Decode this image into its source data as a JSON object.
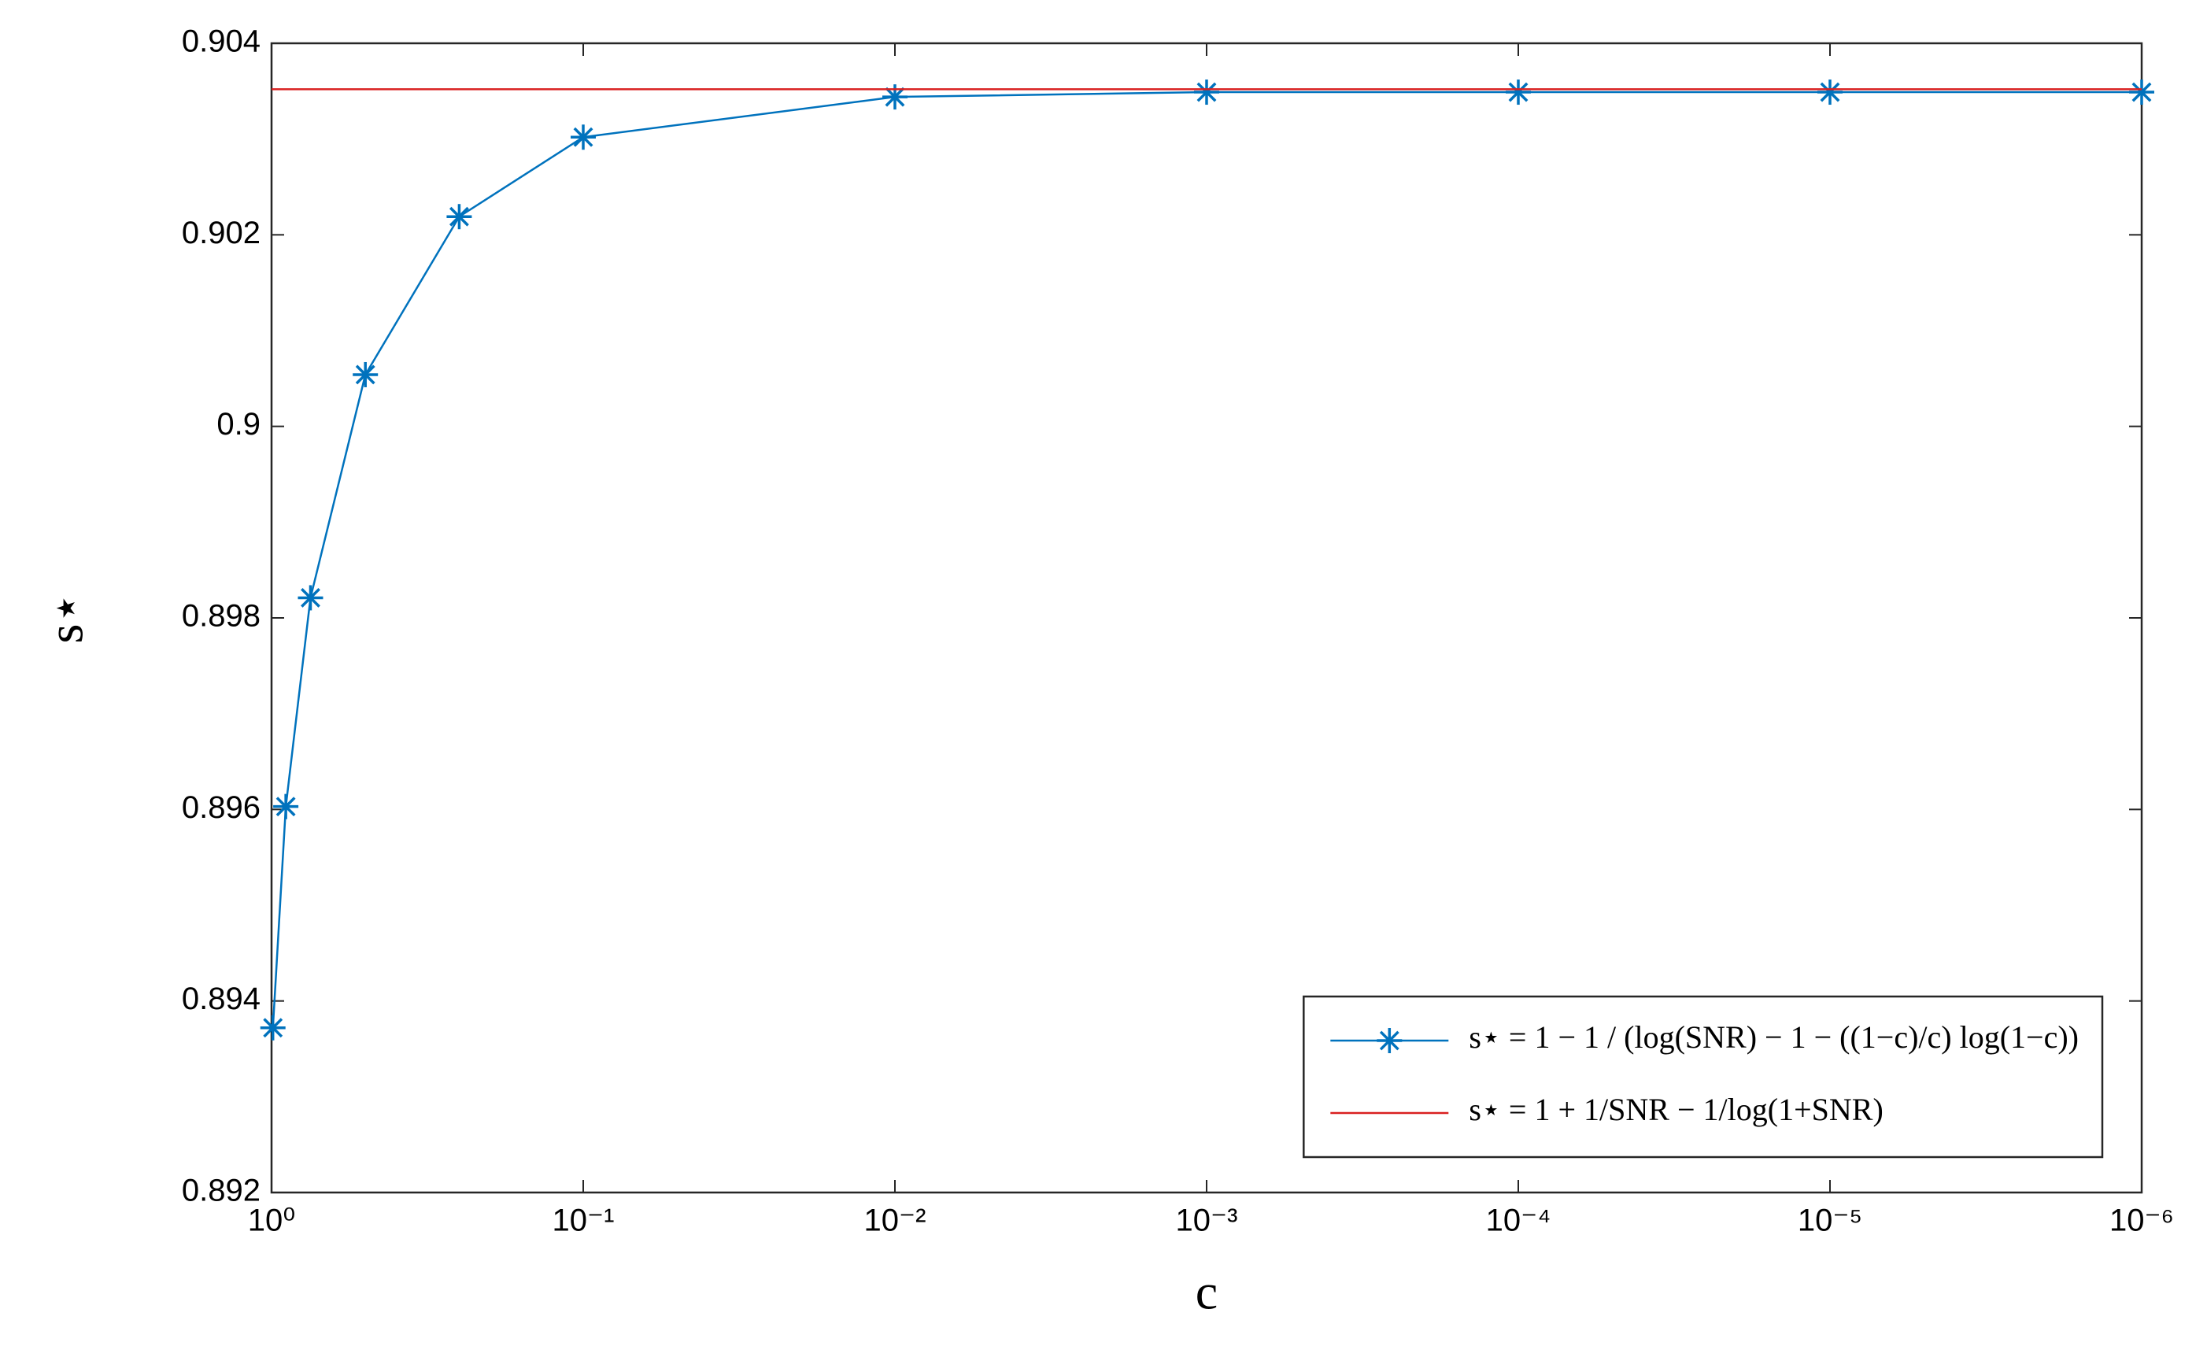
{
  "chart_data": {
    "type": "line",
    "x_label": "c",
    "y_label": "s⋆",
    "x_scale": "log",
    "xlim": [
      1,
      1e-06
    ],
    "xticks": [
      {
        "value": 1,
        "label": "10⁰"
      },
      {
        "value": 0.1,
        "label": "10⁻¹"
      },
      {
        "value": 0.01,
        "label": "10⁻²"
      },
      {
        "value": 0.001,
        "label": "10⁻³"
      },
      {
        "value": 0.0001,
        "label": "10⁻⁴"
      },
      {
        "value": 1e-05,
        "label": "10⁻⁵"
      },
      {
        "value": 1e-06,
        "label": "10⁻⁶"
      }
    ],
    "ylim": [
      0.892,
      0.904
    ],
    "yticks": [
      0.892,
      0.894,
      0.896,
      0.898,
      0.9,
      0.902,
      0.904
    ],
    "legend_position": "lower right",
    "series": [
      {
        "name": "s⋆ = 1 − 1 / (log(SNR) − 1 − ((1−c)/c) log(1−c))",
        "color": "#0072bd",
        "marker": "asterisk",
        "x": [
          0.99,
          0.9,
          0.75,
          0.5,
          0.25,
          0.1,
          0.01,
          0.001,
          0.0001,
          1e-05,
          1e-06
        ],
        "values": [
          0.89372,
          0.89603,
          0.89821,
          0.90054,
          0.90219,
          0.90302,
          0.90344,
          0.90349,
          0.90349,
          0.90349,
          0.90349
        ]
      },
      {
        "name": "s⋆ = 1 + 1/SNR − 1/log(1+SNR)",
        "color": "#d92020",
        "marker": "none",
        "x": [
          1,
          1e-06
        ],
        "values": [
          0.90352,
          0.90352
        ]
      }
    ]
  }
}
